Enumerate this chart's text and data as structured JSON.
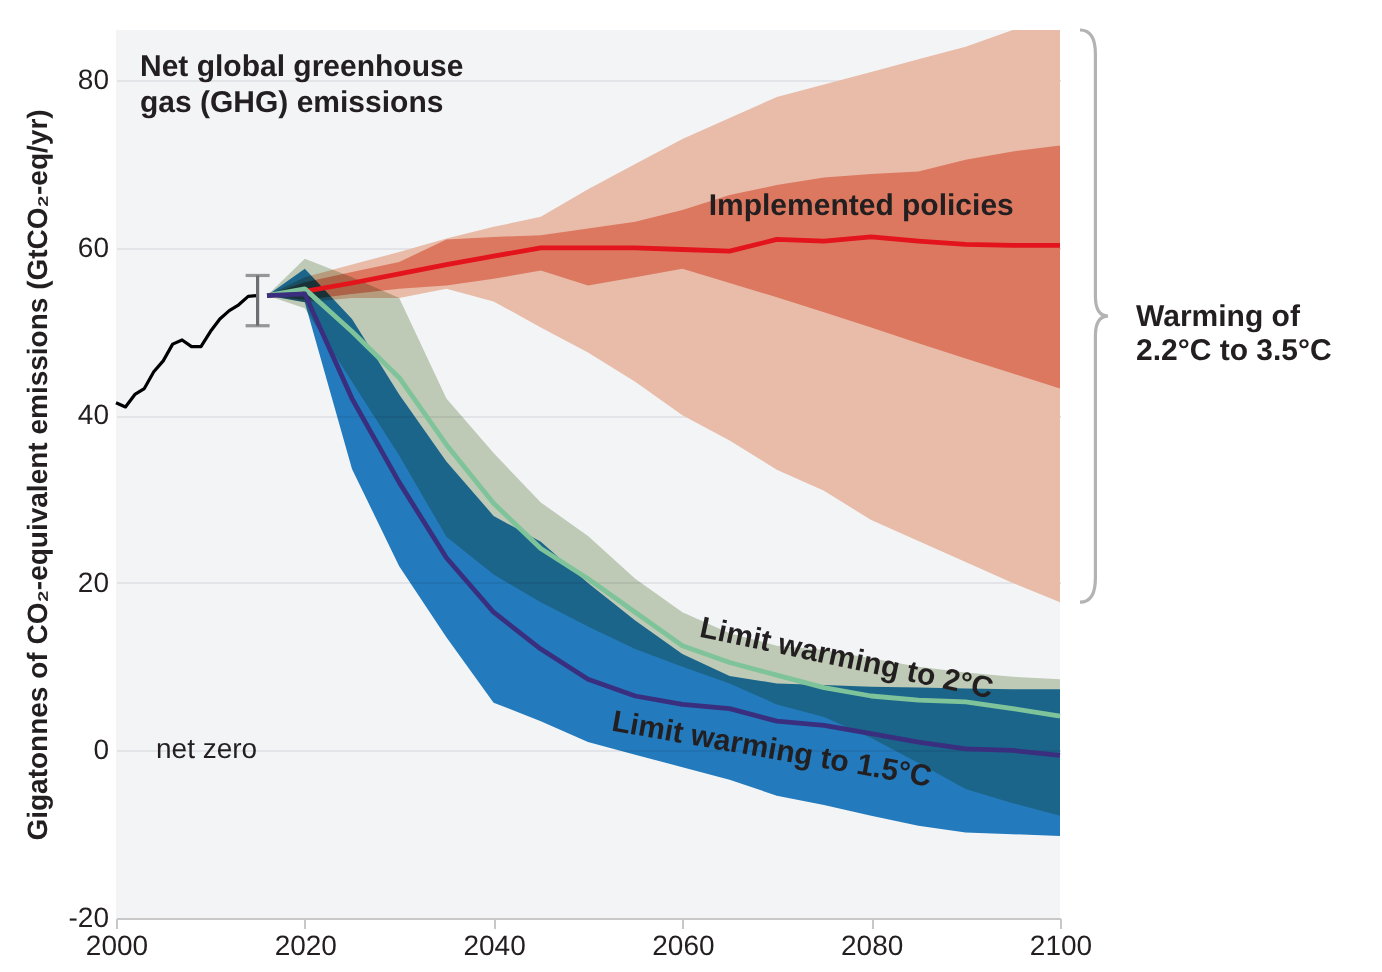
{
  "chart_data": {
    "type": "line",
    "title": "Net global greenhouse gas (GHG) emissions",
    "ylabel": "Gigatonnes of CO₂-equivalent emissions (GtCO₂-eq/yr)",
    "x": [
      2016,
      2020,
      2025,
      2030,
      2035,
      2040,
      2045,
      2050,
      2055,
      2060,
      2065,
      2070,
      2075,
      2080,
      2085,
      2090,
      2095,
      2100
    ],
    "series": [
      {
        "color": "#e8bca9",
        "values": [
          null,
          null,
          null,
          null,
          null,
          null,
          null,
          null,
          null,
          null,
          null,
          null,
          null,
          null,
          null,
          null,
          null,
          null
        ],
        "lower": [
          54.3,
          53.5,
          54,
          54,
          55.1,
          53.6,
          50.5,
          47.5,
          44,
          40,
          37,
          33.5,
          31,
          27.5,
          25,
          22.5,
          20,
          17.7
        ],
        "upper": [
          54.3,
          56.5,
          58,
          59.5,
          61.1,
          62.5,
          63.7,
          67,
          70,
          73,
          75.5,
          78,
          79.5,
          81,
          82.5,
          84,
          86,
          86
        ]
      },
      {
        "color": "#dc7860",
        "values": [
          null,
          null,
          null,
          null,
          null,
          null,
          null,
          null,
          null,
          null,
          null,
          null,
          null,
          null,
          null,
          null,
          null,
          null
        ],
        "lower": [
          54.3,
          53.8,
          54.5,
          55.1,
          55.5,
          56.3,
          57.3,
          55.5,
          56.5,
          57.5,
          55.8,
          54.1,
          52.3,
          50.5,
          48.6,
          46.8,
          45,
          43.2
        ],
        "upper": [
          54.3,
          55.9,
          57.1,
          58.3,
          61,
          61.3,
          61.5,
          62.3,
          63.1,
          64.5,
          66.3,
          67.5,
          68.4,
          68.8,
          69.1,
          70.5,
          71.5,
          72.2
        ]
      },
      {
        "color": "#c8d3bc",
        "values": [
          null,
          null,
          null,
          null,
          null,
          null,
          null,
          null,
          null,
          null,
          null,
          null,
          null,
          null,
          null,
          null,
          null,
          null
        ],
        "lower": [
          54.3,
          52.8,
          44,
          35.2,
          25.5,
          21,
          17.7,
          14.8,
          12.1,
          10,
          8,
          5.5,
          4,
          1.5,
          -1.5,
          -4.6,
          -6.3,
          -7.8
        ],
        "upper": [
          54.3,
          58.7,
          56.5,
          54,
          42,
          35.5,
          29.6,
          25.6,
          20.5,
          16.5,
          14,
          12.5,
          12,
          11,
          10,
          9.3,
          8.8,
          8.5
        ]
      },
      {
        "color": "#2480c3",
        "values": [
          null,
          null,
          null,
          null,
          null,
          null,
          null,
          null,
          null,
          null,
          null,
          null,
          null,
          null,
          null,
          null,
          null,
          null
        ],
        "lower": [
          54.3,
          53.5,
          33.6,
          22,
          13.5,
          5.7,
          3.5,
          1,
          -0.5,
          -2,
          -3.5,
          -5.4,
          -6.5,
          -7.8,
          -9,
          -9.8,
          -10,
          -10.2
        ],
        "upper": [
          54.3,
          57.5,
          51.5,
          42.5,
          34.5,
          28,
          24.9,
          20,
          15.5,
          11.5,
          8.9,
          8,
          7.8,
          7.6,
          7.5,
          7.4,
          7.3,
          7.3
        ]
      },
      {
        "color": "#000000",
        "x": [
          2000,
          2001,
          2002,
          2003,
          2004,
          2005,
          2006,
          2007,
          2008,
          2009,
          2010,
          2011,
          2012,
          2013,
          2014,
          2015
        ],
        "values": [
          41.5,
          41,
          42.5,
          43.2,
          45.2,
          46.5,
          48.5,
          49,
          48.2,
          48.2,
          50,
          51.5,
          52.5,
          53.2,
          54.2,
          54.3
        ],
        "errors": [
          null,
          null,
          null,
          null,
          null,
          null,
          null,
          null,
          null,
          null,
          null,
          null,
          null,
          null,
          null,
          [
            50.7,
            56.7
          ]
        ]
      },
      {
        "name": "Implemented policies",
        "color": "#e3141b",
        "values": [
          54.3,
          54.8,
          55.8,
          56.9,
          58,
          59,
          60,
          60,
          60,
          59.8,
          59.6,
          61,
          60.8,
          61.3,
          60.8,
          60.4,
          60.3,
          60.3
        ]
      },
      {
        "name": "Limit warming to 2°C",
        "color": "#7fc39a",
        "values": [
          54.3,
          55.1,
          50,
          44.5,
          36.5,
          29.5,
          24.1,
          20.5,
          16.5,
          12.5,
          10.5,
          9,
          7.5,
          6.5,
          6,
          5.8,
          5,
          4.1
        ]
      },
      {
        "name": "Limit warming to 1.5°C",
        "color": "#3a2f7f",
        "values": [
          54.3,
          54.5,
          42,
          32,
          23,
          16.5,
          12.1,
          8.5,
          6.5,
          5.5,
          5,
          3.5,
          3,
          2,
          1,
          0.2,
          0,
          -0.6
        ]
      }
    ],
    "annotations": [
      "net zero",
      "Warming of 2.2°C to 3.5°C"
    ],
    "xlim": [
      2000,
      2100
    ],
    "xticks": [
      2000,
      2020,
      2040,
      2060,
      2080,
      2100
    ],
    "ylim": [
      -20,
      86
    ],
    "yticks": [
      -20,
      0,
      20,
      40,
      60,
      80
    ],
    "grid": "y"
  }
}
